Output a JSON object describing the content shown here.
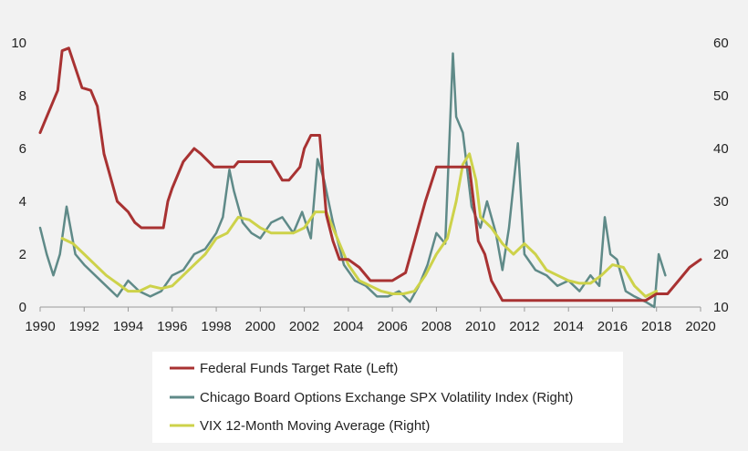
{
  "chart_data": {
    "type": "line",
    "title": "",
    "xlabel": "",
    "ylabel_left": "",
    "ylabel_right": "",
    "xlim": [
      1990,
      2020
    ],
    "x_ticks": [
      "1990",
      "1992",
      "1994",
      "1996",
      "1998",
      "2000",
      "2002",
      "2004",
      "2006",
      "2008",
      "2010",
      "2012",
      "2014",
      "2016",
      "2018",
      "2020"
    ],
    "ylim_left": [
      0,
      10
    ],
    "y_left_ticks": [
      "0",
      "2",
      "4",
      "6",
      "8",
      "10"
    ],
    "ylim_right": [
      10,
      60
    ],
    "y_right_ticks": [
      "10",
      "20",
      "30",
      "40",
      "50",
      "60"
    ],
    "grid": false,
    "legend_position": "bottom",
    "colors": {
      "fed": "#a83232",
      "vix": "#5f8a88",
      "ma": "#cdd24a",
      "plot_bg": "#f2f2f2",
      "legend_bg": "#ffffff"
    },
    "series": [
      {
        "name": "Federal Funds Target Rate (Left)",
        "axis": "left",
        "x": [
          1990,
          1990.3,
          1990.8,
          1991.0,
          1991.3,
          1991.9,
          1992.3,
          1992.6,
          1992.9,
          1993.5,
          1994.0,
          1994.3,
          1994.6,
          1994.9,
          1995.6,
          1995.8,
          1996.0,
          1996.5,
          1997.0,
          1997.3,
          1997.9,
          1998.8,
          1999.0,
          1999.5,
          2000.0,
          2000.5,
          2001.0,
          2001.3,
          2001.8,
          2002.0,
          2002.3,
          2002.7,
          2003.0,
          2003.3,
          2003.6,
          2004.0,
          2004.5,
          2005.0,
          2005.5,
          2006.0,
          2006.6,
          2007.0,
          2007.5,
          2008.0,
          2008.5,
          2009.0,
          2009.5,
          2009.9,
          2010.2,
          2010.5,
          2011.0,
          2012.0,
          2014.0,
          2015.9,
          2016.9,
          2017.5,
          2018.0,
          2018.5,
          2019.0,
          2019.5,
          2020.0
        ],
        "values": [
          6.6,
          7.2,
          8.2,
          9.7,
          9.8,
          8.3,
          8.2,
          7.6,
          5.8,
          4.0,
          3.6,
          3.2,
          3.0,
          3.0,
          3.0,
          4.0,
          4.5,
          5.5,
          6.0,
          5.8,
          5.3,
          5.3,
          5.5,
          5.5,
          5.5,
          5.5,
          4.8,
          4.8,
          5.3,
          6.0,
          6.5,
          6.5,
          3.5,
          2.5,
          1.8,
          1.8,
          1.5,
          1.0,
          1.0,
          1.0,
          1.3,
          2.5,
          4.0,
          5.3,
          5.3,
          5.3,
          5.3,
          2.5,
          2.0,
          1.0,
          0.25,
          0.25,
          0.25,
          0.25,
          0.25,
          0.25,
          0.5,
          0.5,
          1.0,
          1.5,
          1.8
        ]
      },
      {
        "name": "Chicago Board Options Exchange SPX Volatility Index (Right)",
        "axis": "right",
        "x": [
          1990.0,
          1990.3,
          1990.6,
          1990.9,
          1991.2,
          1991.6,
          1992.0,
          1992.5,
          1993.0,
          1993.5,
          1994.0,
          1994.5,
          1995.0,
          1995.5,
          1996.0,
          1996.5,
          1997.0,
          1997.5,
          1998.0,
          1998.3,
          1998.6,
          1998.8,
          1999.2,
          1999.6,
          2000.0,
          2000.5,
          2001.0,
          2001.5,
          2001.9,
          2002.3,
          2002.6,
          2002.9,
          2003.3,
          2003.8,
          2004.3,
          2004.8,
          2005.3,
          2005.8,
          2006.3,
          2006.8,
          2007.2,
          2007.6,
          2008.0,
          2008.4,
          2008.75,
          2008.9,
          2009.2,
          2009.6,
          2010.0,
          2010.3,
          2010.7,
          2011.0,
          2011.3,
          2011.7,
          2012.0,
          2012.5,
          2013.0,
          2013.5,
          2014.0,
          2014.5,
          2015.0,
          2015.4,
          2015.65,
          2015.9,
          2016.2,
          2016.6,
          2017.0,
          2017.5,
          2017.9,
          2018.1,
          2018.4
        ],
        "values": [
          25,
          20,
          16,
          20,
          29,
          20,
          18,
          16,
          14,
          12,
          15,
          13,
          12,
          13,
          16,
          17,
          20,
          21,
          24,
          27,
          36,
          32,
          26,
          24,
          23,
          26,
          27,
          24,
          28,
          23,
          38,
          34,
          26,
          18,
          15,
          14,
          12,
          12,
          13,
          11,
          14,
          18,
          24,
          22,
          58,
          46,
          43,
          29,
          25,
          30,
          24,
          17,
          25,
          41,
          20,
          17,
          16,
          14,
          15,
          13,
          16,
          14,
          27,
          20,
          19,
          13,
          12,
          11,
          10,
          20,
          16
        ]
      },
      {
        "name": "VIX 12-Month Moving Average (Right)",
        "axis": "right",
        "x": [
          1991.0,
          1991.5,
          1992.0,
          1992.5,
          1993.0,
          1993.5,
          1994.0,
          1994.5,
          1995.0,
          1995.5,
          1996.0,
          1996.5,
          1997.0,
          1997.5,
          1998.0,
          1998.5,
          1999.0,
          1999.5,
          2000.0,
          2000.5,
          2001.0,
          2001.5,
          2002.0,
          2002.5,
          2003.0,
          2003.5,
          2004.0,
          2004.5,
          2005.0,
          2005.5,
          2006.0,
          2006.5,
          2007.0,
          2007.5,
          2008.0,
          2008.5,
          2008.9,
          2009.2,
          2009.5,
          2009.8,
          2010.0,
          2010.5,
          2011.0,
          2011.5,
          2012.0,
          2012.5,
          2013.0,
          2013.5,
          2014.0,
          2014.5,
          2015.0,
          2015.5,
          2016.0,
          2016.5,
          2017.0,
          2017.5,
          2018.0
        ],
        "values": [
          23,
          22,
          20,
          18,
          16,
          14.5,
          13,
          13,
          14,
          13.5,
          14,
          16,
          18,
          20,
          23,
          24,
          27,
          26.5,
          25,
          24,
          24,
          24,
          25,
          28,
          28,
          23,
          18,
          15,
          14,
          13,
          12.5,
          12.5,
          13,
          16,
          20,
          23,
          30,
          37,
          39,
          34,
          27,
          25,
          22,
          20,
          22,
          20,
          17,
          16,
          15,
          14.5,
          14.5,
          16,
          18,
          17.5,
          14,
          12,
          13
        ]
      }
    ]
  }
}
